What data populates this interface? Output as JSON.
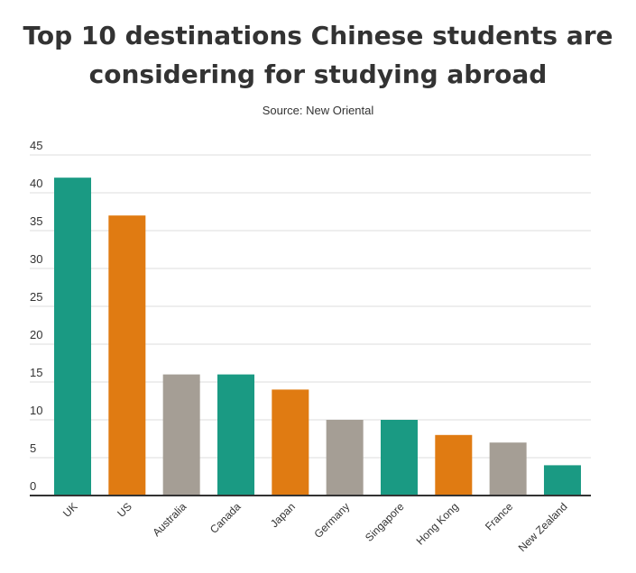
{
  "colors": {
    "teal": "#1a9a83",
    "orange": "#e07b12",
    "gray": "#a59e95",
    "grid": "#dddddd",
    "axis": "#333333"
  },
  "chart_data": {
    "type": "bar",
    "title": "Top 10 destinations Chinese students are considering for studying abroad",
    "title_line1": "Top 10 destinations Chinese students are",
    "title_line2": "considering for studying abroad",
    "subtitle": "Source: New Oriental",
    "xlabel": "",
    "ylabel": "",
    "ylim": [
      0,
      45
    ],
    "yticks": [
      0,
      5,
      10,
      15,
      20,
      25,
      30,
      35,
      40,
      45
    ],
    "grid": true,
    "legend": "none",
    "categories": [
      "UK",
      "US",
      "Australia",
      "Canada",
      "Japan",
      "Germany",
      "Singapore",
      "Hong Kong",
      "France",
      "New Zealand"
    ],
    "values": [
      42,
      37,
      16,
      16,
      14,
      10,
      10,
      8,
      7,
      4
    ],
    "bar_colors": [
      "teal",
      "orange",
      "gray",
      "teal",
      "orange",
      "gray",
      "teal",
      "orange",
      "gray",
      "teal"
    ]
  }
}
